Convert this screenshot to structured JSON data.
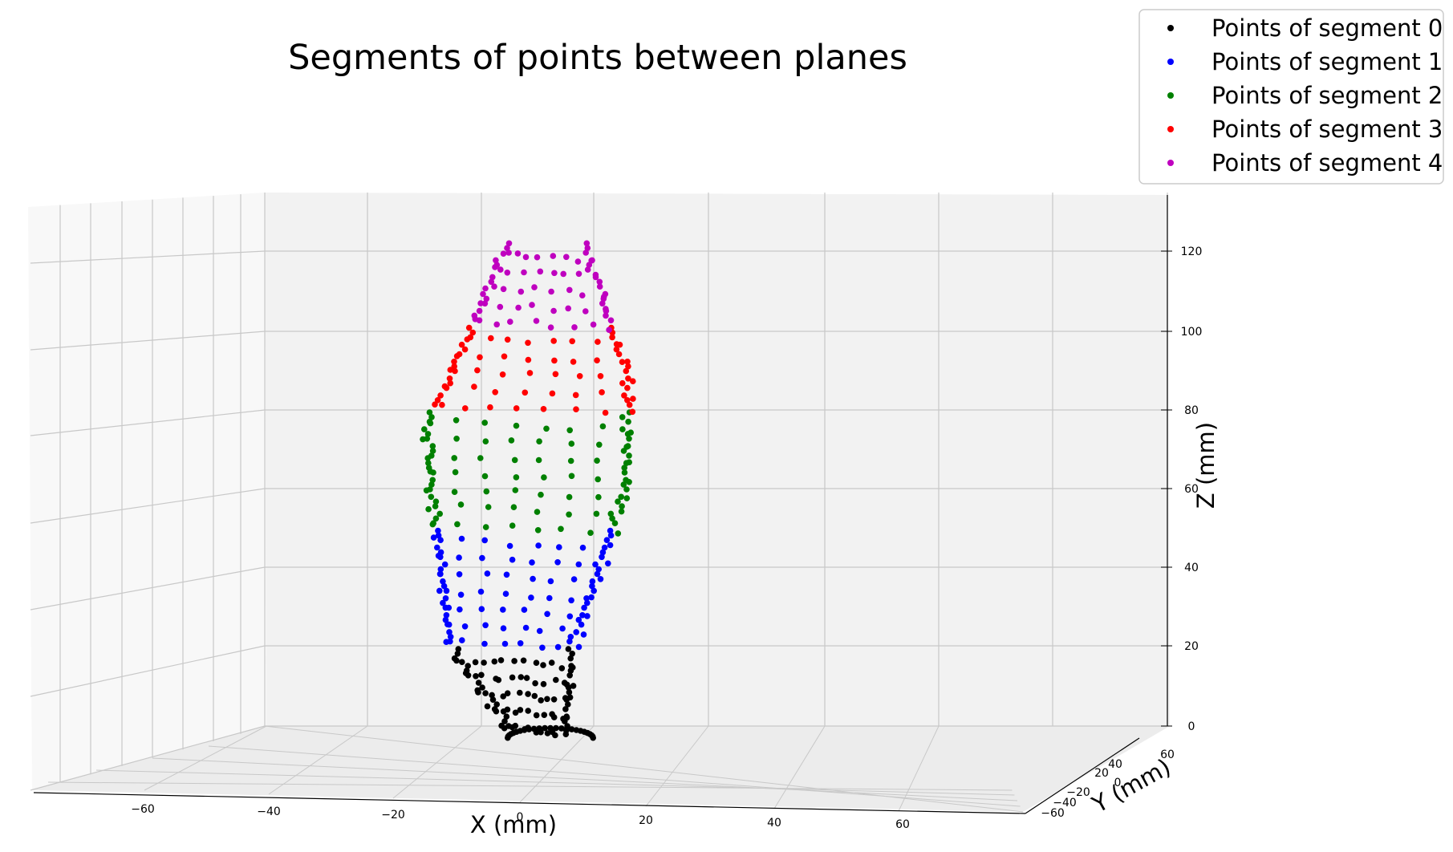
{
  "chart_data": {
    "type": "scatter",
    "projection": "3d",
    "title": "Segments of points between planes",
    "xlabel": "X (mm)",
    "ylabel": "Y (mm)",
    "zlabel": "Z (mm)",
    "xticks": [
      "−60",
      "−40",
      "−20",
      "0",
      "20",
      "40",
      "60"
    ],
    "yticks": [
      "−60",
      "−40",
      "−20",
      "0",
      "20",
      "40",
      "60"
    ],
    "zticks": [
      "0",
      "20",
      "40",
      "60",
      "80",
      "100",
      "120"
    ],
    "grid": true,
    "legend_position": "top-right",
    "series": [
      {
        "name": "Points of segment 0",
        "color": "#000000",
        "z_range": [
          0,
          20
        ]
      },
      {
        "name": "Points of segment 1",
        "color": "#0000ff",
        "z_range": [
          20,
          50
        ]
      },
      {
        "name": "Points of segment 2",
        "color": "#008000",
        "z_range": [
          50,
          80
        ]
      },
      {
        "name": "Points of segment 3",
        "color": "#ff0000",
        "z_range": [
          80,
          100
        ]
      },
      {
        "name": "Points of segment 4",
        "color": "#bf00bf",
        "z_range": [
          100,
          125
        ]
      }
    ]
  }
}
